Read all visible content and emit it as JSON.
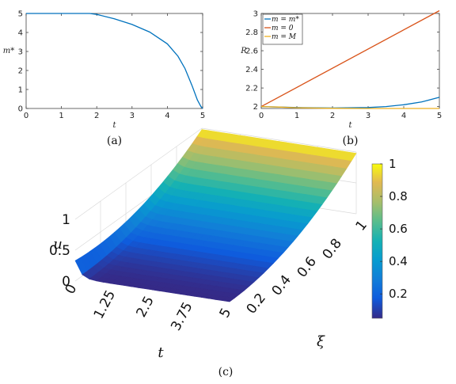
{
  "chart_data": [
    {
      "type": "line",
      "caption": "(a)",
      "xlabel": "t",
      "ylabel": "m*",
      "xlim": [
        0,
        5
      ],
      "ylim": [
        0,
        5
      ],
      "xticks": [
        "0",
        "1",
        "2",
        "3",
        "4",
        "5"
      ],
      "yticks": [
        "0",
        "1",
        "2",
        "3",
        "4",
        "5"
      ],
      "series": [
        {
          "color": "#0072BD",
          "x": [
            0,
            0.5,
            1,
            1.5,
            1.8,
            2,
            2.5,
            3,
            3.5,
            4,
            4.3,
            4.5,
            4.7,
            4.85,
            4.95,
            5
          ],
          "y": [
            5,
            5,
            5,
            5,
            5,
            4.95,
            4.72,
            4.42,
            4.02,
            3.4,
            2.75,
            2.1,
            1.2,
            0.45,
            0.1,
            0
          ]
        }
      ]
    },
    {
      "type": "line",
      "caption": "(b)",
      "xlabel": "t",
      "ylabel": "R",
      "xlim": [
        0,
        5
      ],
      "ylim": [
        1.98,
        3.0
      ],
      "xticks": [
        "0",
        "1",
        "2",
        "3",
        "4",
        "5"
      ],
      "yticks": [
        "2",
        "2.2",
        "2.4",
        "2.6",
        "2.8",
        "3"
      ],
      "legend_position": "top-left",
      "series": [
        {
          "name": "m = m*",
          "color": "#0072BD",
          "x": [
            0,
            0.5,
            1,
            2,
            3,
            3.5,
            4,
            4.5,
            5
          ],
          "y": [
            2.0,
            1.995,
            1.99,
            1.985,
            1.99,
            2.0,
            2.02,
            2.05,
            2.1
          ]
        },
        {
          "name": "m = 0",
          "color": "#D95319",
          "x": [
            0,
            5
          ],
          "y": [
            2.0,
            3.03
          ]
        },
        {
          "name": "m = M",
          "color": "#EDB120",
          "x": [
            0,
            0.5,
            1,
            2,
            3,
            4,
            5
          ],
          "y": [
            2.0,
            1.995,
            1.988,
            1.982,
            1.98,
            1.98,
            1.98
          ]
        }
      ]
    },
    {
      "type": "surface",
      "caption": "(c)",
      "xlabel": "t",
      "ylabel": "ξ",
      "zlabel": "u",
      "xlim": [
        0,
        5
      ],
      "ylim": [
        0,
        1
      ],
      "zlim": [
        0,
        1
      ],
      "xticks": [
        "0",
        "1.25",
        "2.5",
        "3.75",
        "5"
      ],
      "yticks": [
        "0.2",
        "0.4",
        "0.6",
        "0.8",
        "1"
      ],
      "zticks": [
        "0",
        "0.5",
        "1"
      ],
      "colorbar_ticks": [
        "0.2",
        "0.4",
        "0.6",
        "0.8",
        "1"
      ],
      "colorbar_range": [
        0.05,
        1
      ],
      "colormap": "parula"
    }
  ]
}
